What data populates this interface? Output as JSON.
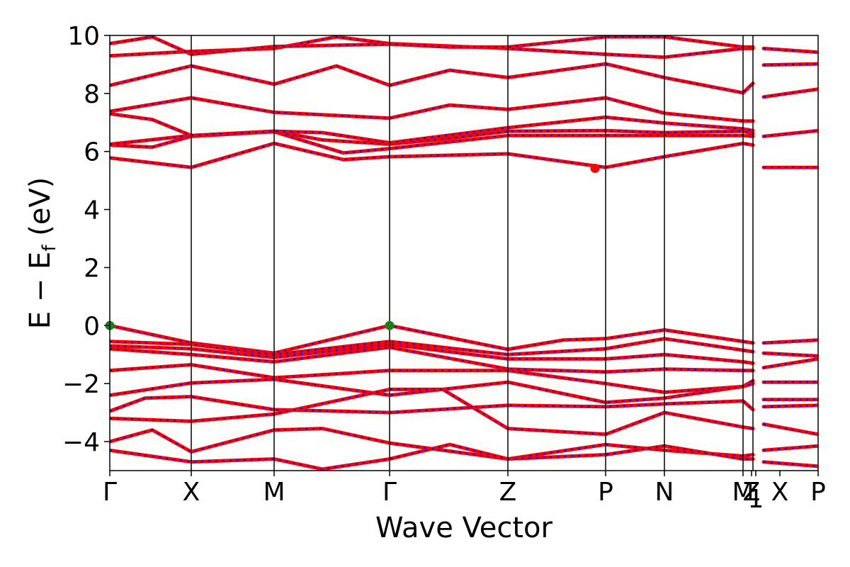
{
  "chart_data": {
    "type": "line",
    "title": "",
    "xlabel": "Wave Vector",
    "ylabel_main": "E − E",
    "ylabel_sub": "f",
    "ylabel_tail": " (eV)",
    "ylim": [
      -5,
      10
    ],
    "yticks": [
      -4,
      -2,
      0,
      2,
      4,
      6,
      8,
      10
    ],
    "ytick_labels": [
      "−4",
      "−2",
      "0",
      "2",
      "4",
      "6",
      "8",
      "10"
    ],
    "grid": false,
    "kpoints": [
      {
        "label": "Γ",
        "x": 0.0
      },
      {
        "label": "X",
        "x": 0.115
      },
      {
        "label": "M",
        "x": 0.232
      },
      {
        "label": "Γ",
        "x": 0.395
      },
      {
        "label": "Z",
        "x": 0.562
      },
      {
        "label": "P",
        "x": 0.7
      },
      {
        "label": "N",
        "x": 0.783
      },
      {
        "label": "M",
        "x": 0.894
      },
      {
        "label": "Z",
        "x": 0.906
      },
      {
        "label": "1",
        "x": 0.912
      },
      {
        "label": "X",
        "x": 0.946
      },
      {
        "label": "P",
        "x": 1.0
      }
    ],
    "vlines": [
      0.115,
      0.232,
      0.395,
      0.562,
      0.7,
      0.783,
      0.894,
      0.908
    ],
    "series_colors": {
      "up": "#ff0000",
      "down": "#0000ff"
    },
    "bands": [
      [
        [
          0,
          5.78
        ],
        [
          0.115,
          5.45
        ],
        [
          0.232,
          6.28
        ],
        [
          0.33,
          5.72
        ],
        [
          0.395,
          5.82
        ],
        [
          0.562,
          5.92
        ],
        [
          0.68,
          5.52
        ],
        [
          0.7,
          5.45
        ],
        [
          0.783,
          5.82
        ],
        [
          0.894,
          6.28
        ],
        [
          0.908,
          6.22
        ]
      ],
      [
        [
          0,
          6.22
        ],
        [
          0.06,
          6.15
        ],
        [
          0.115,
          6.52
        ],
        [
          0.232,
          6.68
        ],
        [
          0.33,
          5.95
        ],
        [
          0.395,
          6.1
        ],
        [
          0.562,
          6.55
        ],
        [
          0.7,
          6.55
        ],
        [
          0.783,
          6.55
        ],
        [
          0.894,
          6.55
        ],
        [
          0.908,
          6.52
        ]
      ],
      [
        [
          0,
          6.25
        ],
        [
          0.115,
          6.55
        ],
        [
          0.232,
          6.7
        ],
        [
          0.3,
          6.4
        ],
        [
          0.395,
          6.25
        ],
        [
          0.48,
          6.45
        ],
        [
          0.562,
          6.7
        ],
        [
          0.7,
          6.72
        ],
        [
          0.783,
          6.65
        ],
        [
          0.894,
          6.7
        ],
        [
          0.908,
          6.62
        ]
      ],
      [
        [
          0,
          7.3
        ],
        [
          0.06,
          7.1
        ],
        [
          0.115,
          6.55
        ],
        [
          0.232,
          6.7
        ],
        [
          0.3,
          6.65
        ],
        [
          0.395,
          6.3
        ],
        [
          0.562,
          6.82
        ],
        [
          0.7,
          7.18
        ],
        [
          0.783,
          6.98
        ],
        [
          0.894,
          6.78
        ],
        [
          0.908,
          6.72
        ]
      ],
      [
        [
          0,
          7.38
        ],
        [
          0.115,
          7.85
        ],
        [
          0.232,
          7.35
        ],
        [
          0.395,
          7.15
        ],
        [
          0.48,
          7.6
        ],
        [
          0.562,
          7.45
        ],
        [
          0.7,
          7.85
        ],
        [
          0.783,
          7.32
        ],
        [
          0.894,
          7.05
        ],
        [
          0.908,
          7.05
        ]
      ],
      [
        [
          0,
          8.28
        ],
        [
          0.115,
          8.95
        ],
        [
          0.232,
          8.32
        ],
        [
          0.32,
          8.95
        ],
        [
          0.395,
          8.28
        ],
        [
          0.48,
          8.8
        ],
        [
          0.562,
          8.55
        ],
        [
          0.7,
          9.02
        ],
        [
          0.783,
          8.55
        ],
        [
          0.894,
          8.02
        ],
        [
          0.908,
          8.35
        ]
      ],
      [
        [
          0,
          9.3
        ],
        [
          0.115,
          9.45
        ],
        [
          0.232,
          9.55
        ],
        [
          0.32,
          9.95
        ],
        [
          0.395,
          9.72
        ],
        [
          0.562,
          9.55
        ],
        [
          0.7,
          9.35
        ],
        [
          0.783,
          9.25
        ],
        [
          0.894,
          9.55
        ],
        [
          0.908,
          9.55
        ]
      ],
      [
        [
          0,
          9.72
        ],
        [
          0.06,
          9.95
        ],
        [
          0.115,
          9.35
        ],
        [
          0.232,
          9.62
        ],
        [
          0.395,
          9.7
        ],
        [
          0.48,
          9.6
        ],
        [
          0.562,
          9.6
        ],
        [
          0.7,
          9.95
        ],
        [
          0.783,
          9.95
        ],
        [
          0.894,
          9.6
        ],
        [
          0.908,
          9.6
        ]
      ],
      [
        [
          0.923,
          5.45
        ],
        [
          1.0,
          5.45
        ]
      ],
      [
        [
          0.923,
          6.52
        ],
        [
          1.0,
          6.72
        ]
      ],
      [
        [
          0.923,
          7.88
        ],
        [
          1.0,
          8.15
        ]
      ],
      [
        [
          0.923,
          8.98
        ],
        [
          1.0,
          9.02
        ]
      ],
      [
        [
          0.923,
          9.55
        ],
        [
          1.0,
          9.42
        ]
      ],
      [
        [
          0,
          0.0
        ],
        [
          0.115,
          -0.6
        ],
        [
          0.232,
          -0.95
        ],
        [
          0.395,
          0.0
        ],
        [
          0.562,
          -0.82
        ],
        [
          0.64,
          -0.5
        ],
        [
          0.7,
          -0.45
        ],
        [
          0.783,
          -0.15
        ],
        [
          0.894,
          -0.55
        ],
        [
          0.908,
          -0.6
        ]
      ],
      [
        [
          0,
          -0.55
        ],
        [
          0.115,
          -0.65
        ],
        [
          0.232,
          -1.0
        ],
        [
          0.395,
          -0.55
        ],
        [
          0.562,
          -1.0
        ],
        [
          0.7,
          -0.8
        ],
        [
          0.783,
          -0.45
        ],
        [
          0.894,
          -0.85
        ],
        [
          0.908,
          -0.9
        ]
      ],
      [
        [
          0,
          -0.7
        ],
        [
          0.115,
          -0.8
        ],
        [
          0.232,
          -1.1
        ],
        [
          0.395,
          -0.65
        ],
        [
          0.562,
          -1.15
        ],
        [
          0.7,
          -1.15
        ],
        [
          0.783,
          -1.0
        ],
        [
          0.894,
          -1.25
        ],
        [
          0.908,
          -1.3
        ]
      ],
      [
        [
          0,
          -0.8
        ],
        [
          0.115,
          -1.0
        ],
        [
          0.232,
          -1.25
        ],
        [
          0.395,
          -0.75
        ],
        [
          0.562,
          -1.5
        ],
        [
          0.7,
          -1.6
        ],
        [
          0.783,
          -1.5
        ],
        [
          0.894,
          -1.55
        ],
        [
          0.908,
          -1.55
        ]
      ],
      [
        [
          0,
          -1.55
        ],
        [
          0.115,
          -1.35
        ],
        [
          0.232,
          -1.8
        ],
        [
          0.395,
          -1.55
        ],
        [
          0.562,
          -1.55
        ],
        [
          0.7,
          -2.0
        ],
        [
          0.783,
          -2.3
        ],
        [
          0.894,
          -2.1
        ],
        [
          0.908,
          -1.9
        ]
      ],
      [
        [
          0,
          -2.4
        ],
        [
          0.115,
          -1.98
        ],
        [
          0.232,
          -1.85
        ],
        [
          0.395,
          -2.4
        ],
        [
          0.562,
          -1.95
        ],
        [
          0.7,
          -2.65
        ],
        [
          0.783,
          -2.5
        ],
        [
          0.894,
          -2.1
        ],
        [
          0.908,
          -2.0
        ]
      ],
      [
        [
          0,
          -2.95
        ],
        [
          0.05,
          -2.5
        ],
        [
          0.115,
          -2.45
        ],
        [
          0.232,
          -2.9
        ],
        [
          0.32,
          -2.95
        ],
        [
          0.395,
          -3.0
        ],
        [
          0.562,
          -2.75
        ],
        [
          0.7,
          -2.8
        ],
        [
          0.783,
          -2.7
        ],
        [
          0.894,
          -2.6
        ],
        [
          0.908,
          -2.9
        ]
      ],
      [
        [
          0,
          -3.2
        ],
        [
          0.115,
          -3.3
        ],
        [
          0.232,
          -3.05
        ],
        [
          0.395,
          -2.2
        ],
        [
          0.47,
          -2.2
        ],
        [
          0.562,
          -3.55
        ],
        [
          0.7,
          -3.75
        ],
        [
          0.783,
          -3.0
        ],
        [
          0.894,
          -3.5
        ],
        [
          0.908,
          -3.55
        ]
      ],
      [
        [
          0,
          -4.0
        ],
        [
          0.06,
          -3.6
        ],
        [
          0.115,
          -4.35
        ],
        [
          0.232,
          -3.6
        ],
        [
          0.3,
          -3.55
        ],
        [
          0.395,
          -4.05
        ],
        [
          0.562,
          -4.6
        ],
        [
          0.7,
          -4.1
        ],
        [
          0.783,
          -4.3
        ],
        [
          0.894,
          -4.5
        ],
        [
          0.908,
          -4.45
        ]
      ],
      [
        [
          0,
          -4.3
        ],
        [
          0.115,
          -4.7
        ],
        [
          0.232,
          -4.6
        ],
        [
          0.3,
          -4.95
        ],
        [
          0.395,
          -4.6
        ],
        [
          0.48,
          -4.1
        ],
        [
          0.562,
          -4.6
        ],
        [
          0.7,
          -4.45
        ],
        [
          0.783,
          -4.15
        ],
        [
          0.894,
          -4.6
        ],
        [
          0.908,
          -4.6
        ]
      ],
      [
        [
          0.923,
          -0.6
        ],
        [
          1.0,
          -0.5
        ]
      ],
      [
        [
          0.923,
          -0.95
        ],
        [
          1.0,
          -1.05
        ]
      ],
      [
        [
          0.923,
          -1.45
        ],
        [
          1.0,
          -1.15
        ]
      ],
      [
        [
          0.923,
          -1.95
        ],
        [
          1.0,
          -1.95
        ]
      ],
      [
        [
          0.923,
          -2.55
        ],
        [
          1.0,
          -2.55
        ]
      ],
      [
        [
          0.923,
          -2.8
        ],
        [
          1.0,
          -2.75
        ]
      ],
      [
        [
          0.923,
          -3.4
        ],
        [
          1.0,
          -3.75
        ]
      ],
      [
        [
          0.923,
          -4.3
        ],
        [
          1.0,
          -4.15
        ]
      ],
      [
        [
          0.923,
          -4.7
        ],
        [
          1.0,
          -4.85
        ]
      ]
    ],
    "markers": [
      {
        "x": 0.0,
        "y": 0.0,
        "color": "#1a7f1a"
      },
      {
        "x": 0.395,
        "y": 0.0,
        "color": "#1a7f1a"
      },
      {
        "x": 0.685,
        "y": 5.42,
        "color": "#ff0000"
      }
    ]
  }
}
